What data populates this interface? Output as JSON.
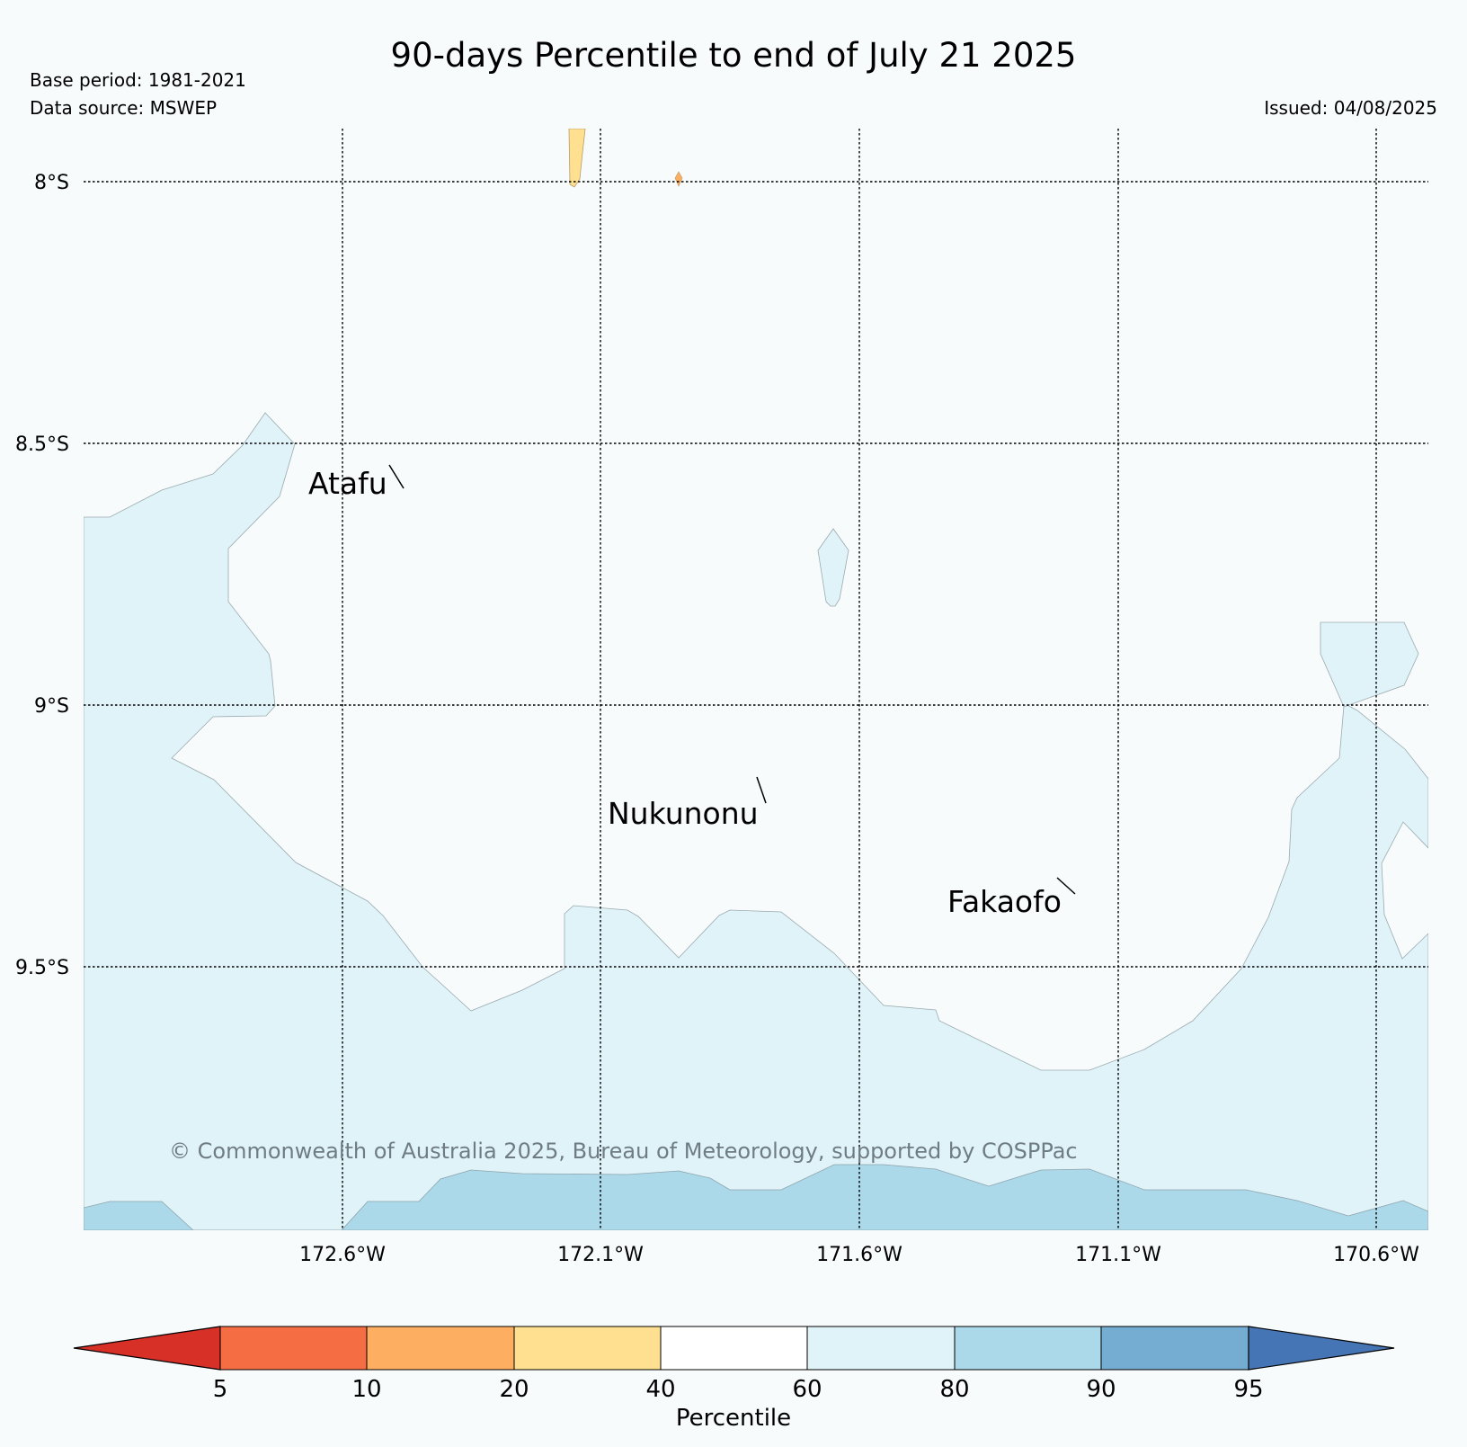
{
  "title": "90-days Percentile to end of July 21 2025",
  "base_period": "Base period: 1981-2021",
  "data_source": "Data source: MSWEP",
  "issued": "Issued: 04/08/2025",
  "credit": "© Commonwealth of Australia 2025, Bureau of Meteorology, supported by COSPPac",
  "lat_labels": [
    "8°S",
    "8.5°S",
    "9°S",
    "9.5°S"
  ],
  "lon_labels": [
    "172.6°W",
    "172.1°W",
    "171.6°W",
    "171.1°W",
    "170.6°W"
  ],
  "places": [
    "Atafu",
    "Nukunonu",
    "Fakaofo"
  ],
  "colorbar": {
    "label": "Percentile",
    "ticks": [
      "5",
      "10",
      "20",
      "40",
      "60",
      "80",
      "90",
      "95"
    ],
    "colors": {
      "below_5": "#d73027",
      "5_10": "#f46d43",
      "10_20": "#fdae61",
      "20_40": "#fee090",
      "40_60": "#f7fbfc",
      "60_80": "#e0f3f8",
      "80_90": "#abd9e9",
      "90_95": "#74add1",
      "above_95": "#4575b4"
    }
  },
  "background_color": "#f7fbfc"
}
